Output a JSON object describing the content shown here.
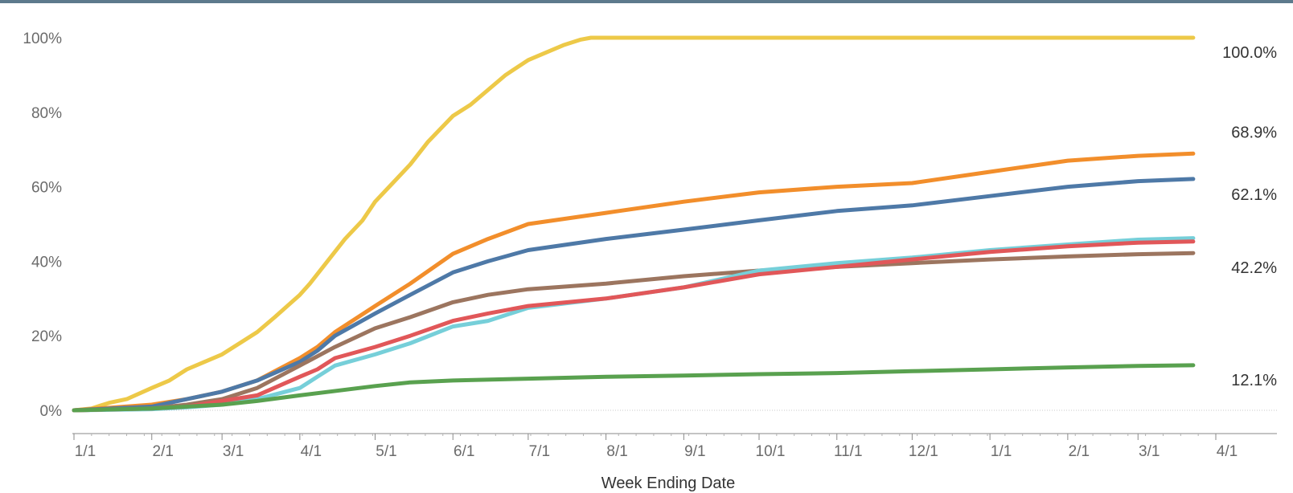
{
  "chart_data": {
    "type": "line",
    "xlabel": "Week Ending Date",
    "ylabel": "",
    "ylim": [
      0,
      100
    ],
    "x_range": [
      "2021-01-01",
      "2022-04-01"
    ],
    "y_ticks": [
      {
        "value": 0,
        "label": "0%"
      },
      {
        "value": 20,
        "label": "20%"
      },
      {
        "value": 40,
        "label": "40%"
      },
      {
        "value": 60,
        "label": "60%"
      },
      {
        "value": 80,
        "label": "80%"
      },
      {
        "value": 100,
        "label": "100%"
      }
    ],
    "x_ticks": [
      {
        "date": "2021-01-01",
        "label": "1/1"
      },
      {
        "date": "2021-02-01",
        "label": "2/1"
      },
      {
        "date": "2021-03-01",
        "label": "3/1"
      },
      {
        "date": "2021-04-01",
        "label": "4/1"
      },
      {
        "date": "2021-05-01",
        "label": "5/1"
      },
      {
        "date": "2021-06-01",
        "label": "6/1"
      },
      {
        "date": "2021-07-01",
        "label": "7/1"
      },
      {
        "date": "2021-08-01",
        "label": "8/1"
      },
      {
        "date": "2021-09-01",
        "label": "9/1"
      },
      {
        "date": "2021-10-01",
        "label": "10/1"
      },
      {
        "date": "2021-11-01",
        "label": "11/1"
      },
      {
        "date": "2021-12-01",
        "label": "12/1"
      },
      {
        "date": "2022-01-01",
        "label": "1/1"
      },
      {
        "date": "2022-02-01",
        "label": "2/1"
      },
      {
        "date": "2022-03-01",
        "label": "3/1"
      },
      {
        "date": "2022-04-01",
        "label": "4/1"
      }
    ],
    "grid": false,
    "legend": "none",
    "series": [
      {
        "color": "#edc948",
        "end_label": "100.0%",
        "points": [
          [
            "2021-01-01",
            0
          ],
          [
            "2021-01-08",
            0.5
          ],
          [
            "2021-01-15",
            2
          ],
          [
            "2021-01-22",
            3
          ],
          [
            "2021-02-01",
            6
          ],
          [
            "2021-02-08",
            8
          ],
          [
            "2021-02-15",
            11
          ],
          [
            "2021-02-22",
            13
          ],
          [
            "2021-03-01",
            15
          ],
          [
            "2021-03-08",
            18
          ],
          [
            "2021-03-15",
            21
          ],
          [
            "2021-03-22",
            25
          ],
          [
            "2021-04-01",
            31
          ],
          [
            "2021-04-05",
            34
          ],
          [
            "2021-04-12",
            40
          ],
          [
            "2021-04-19",
            46
          ],
          [
            "2021-04-26",
            51
          ],
          [
            "2021-05-01",
            56
          ],
          [
            "2021-05-08",
            61
          ],
          [
            "2021-05-15",
            66
          ],
          [
            "2021-05-22",
            72
          ],
          [
            "2021-06-01",
            79
          ],
          [
            "2021-06-08",
            82
          ],
          [
            "2021-06-15",
            86
          ],
          [
            "2021-06-22",
            90
          ],
          [
            "2021-07-01",
            94
          ],
          [
            "2021-07-08",
            96
          ],
          [
            "2021-07-15",
            98
          ],
          [
            "2021-07-22",
            99.5
          ],
          [
            "2021-07-26",
            100
          ],
          [
            "2022-03-23",
            100
          ]
        ]
      },
      {
        "color": "#f28e2b",
        "end_label": "68.9%",
        "points": [
          [
            "2021-01-01",
            0
          ],
          [
            "2021-02-01",
            1.5
          ],
          [
            "2021-02-15",
            3
          ],
          [
            "2021-03-01",
            5
          ],
          [
            "2021-03-15",
            8
          ],
          [
            "2021-04-01",
            14
          ],
          [
            "2021-04-08",
            17
          ],
          [
            "2021-04-15",
            21
          ],
          [
            "2021-05-01",
            28
          ],
          [
            "2021-05-15",
            34
          ],
          [
            "2021-06-01",
            42
          ],
          [
            "2021-06-15",
            46
          ],
          [
            "2021-07-01",
            50
          ],
          [
            "2021-08-01",
            53
          ],
          [
            "2021-09-01",
            56
          ],
          [
            "2021-10-01",
            58.5
          ],
          [
            "2021-11-01",
            60
          ],
          [
            "2021-12-01",
            61
          ],
          [
            "2022-01-01",
            64
          ],
          [
            "2022-02-01",
            67
          ],
          [
            "2022-03-01",
            68.3
          ],
          [
            "2022-03-23",
            68.9
          ]
        ]
      },
      {
        "color": "#4e79a7",
        "end_label": "62.1%",
        "points": [
          [
            "2021-01-01",
            0
          ],
          [
            "2021-02-01",
            1
          ],
          [
            "2021-02-15",
            3
          ],
          [
            "2021-03-01",
            5
          ],
          [
            "2021-03-15",
            8
          ],
          [
            "2021-04-01",
            13
          ],
          [
            "2021-04-08",
            16
          ],
          [
            "2021-04-15",
            20
          ],
          [
            "2021-05-01",
            26
          ],
          [
            "2021-05-15",
            31
          ],
          [
            "2021-06-01",
            37
          ],
          [
            "2021-06-15",
            40
          ],
          [
            "2021-07-01",
            43
          ],
          [
            "2021-08-01",
            46
          ],
          [
            "2021-09-01",
            48.5
          ],
          [
            "2021-10-01",
            51
          ],
          [
            "2021-11-01",
            53.5
          ],
          [
            "2021-12-01",
            55
          ],
          [
            "2022-01-01",
            57.5
          ],
          [
            "2022-02-01",
            60
          ],
          [
            "2022-03-01",
            61.5
          ],
          [
            "2022-03-23",
            62.1
          ]
        ]
      },
      {
        "color": "#9c755f",
        "end_label": "42.2%",
        "points": [
          [
            "2021-01-01",
            0
          ],
          [
            "2021-02-01",
            0.5
          ],
          [
            "2021-02-15",
            1.5
          ],
          [
            "2021-03-01",
            3
          ],
          [
            "2021-03-15",
            6
          ],
          [
            "2021-04-01",
            12
          ],
          [
            "2021-04-15",
            17
          ],
          [
            "2021-05-01",
            22
          ],
          [
            "2021-05-15",
            25
          ],
          [
            "2021-06-01",
            29
          ],
          [
            "2021-06-15",
            31
          ],
          [
            "2021-07-01",
            32.5
          ],
          [
            "2021-08-01",
            34
          ],
          [
            "2021-09-01",
            36
          ],
          [
            "2021-10-01",
            37.5
          ],
          [
            "2021-11-01",
            38.5
          ],
          [
            "2021-12-01",
            39.5
          ],
          [
            "2022-01-01",
            40.5
          ],
          [
            "2022-02-01",
            41.3
          ],
          [
            "2022-03-01",
            41.9
          ],
          [
            "2022-03-23",
            42.2
          ]
        ]
      },
      {
        "color": "#76cfd9",
        "end_label": "",
        "points": [
          [
            "2021-01-01",
            0
          ],
          [
            "2021-02-01",
            0.3
          ],
          [
            "2021-02-15",
            0.8
          ],
          [
            "2021-03-01",
            1.5
          ],
          [
            "2021-03-15",
            3
          ],
          [
            "2021-04-01",
            6
          ],
          [
            "2021-04-08",
            9
          ],
          [
            "2021-04-15",
            12
          ],
          [
            "2021-05-01",
            15
          ],
          [
            "2021-05-15",
            18
          ],
          [
            "2021-06-01",
            22.5
          ],
          [
            "2021-06-15",
            24
          ],
          [
            "2021-07-01",
            27.5
          ],
          [
            "2021-08-01",
            30
          ],
          [
            "2021-09-01",
            33
          ],
          [
            "2021-10-01",
            37.5
          ],
          [
            "2021-11-01",
            39.5
          ],
          [
            "2021-12-01",
            41
          ],
          [
            "2022-01-01",
            43
          ],
          [
            "2022-02-01",
            44.5
          ],
          [
            "2022-03-01",
            45.8
          ],
          [
            "2022-03-23",
            46.2
          ]
        ]
      },
      {
        "color": "#e15759",
        "end_label": "",
        "points": [
          [
            "2021-01-01",
            0
          ],
          [
            "2021-02-01",
            0.5
          ],
          [
            "2021-02-15",
            1
          ],
          [
            "2021-03-01",
            2.5
          ],
          [
            "2021-03-15",
            4
          ],
          [
            "2021-04-01",
            9
          ],
          [
            "2021-04-08",
            11
          ],
          [
            "2021-04-15",
            14
          ],
          [
            "2021-05-01",
            17
          ],
          [
            "2021-05-15",
            20
          ],
          [
            "2021-06-01",
            24
          ],
          [
            "2021-06-15",
            26
          ],
          [
            "2021-07-01",
            28
          ],
          [
            "2021-08-01",
            30
          ],
          [
            "2021-09-01",
            33
          ],
          [
            "2021-10-01",
            36.5
          ],
          [
            "2021-11-01",
            38.5
          ],
          [
            "2021-12-01",
            40.5
          ],
          [
            "2022-01-01",
            42.5
          ],
          [
            "2022-02-01",
            44
          ],
          [
            "2022-03-01",
            45
          ],
          [
            "2022-03-23",
            45.3
          ]
        ]
      },
      {
        "color": "#59a14f",
        "end_label": "12.1%",
        "points": [
          [
            "2021-01-01",
            0
          ],
          [
            "2021-02-01",
            0.5
          ],
          [
            "2021-03-01",
            1.5
          ],
          [
            "2021-03-15",
            2.5
          ],
          [
            "2021-04-01",
            4
          ],
          [
            "2021-05-01",
            6.5
          ],
          [
            "2021-05-15",
            7.5
          ],
          [
            "2021-06-01",
            8
          ],
          [
            "2021-07-01",
            8.5
          ],
          [
            "2021-08-01",
            9
          ],
          [
            "2021-09-01",
            9.3
          ],
          [
            "2021-10-01",
            9.7
          ],
          [
            "2021-11-01",
            10
          ],
          [
            "2021-12-01",
            10.5
          ],
          [
            "2022-01-01",
            11
          ],
          [
            "2022-02-01",
            11.5
          ],
          [
            "2022-03-01",
            11.9
          ],
          [
            "2022-03-23",
            12.1
          ]
        ]
      }
    ]
  }
}
